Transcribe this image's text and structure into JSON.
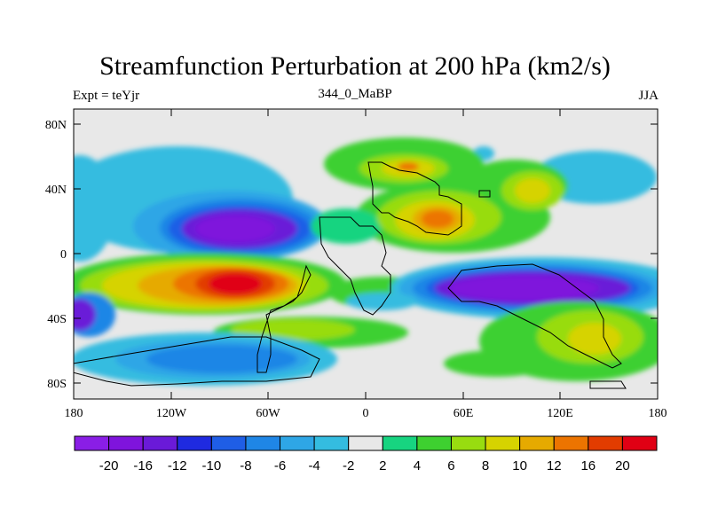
{
  "title": "Streamfunction Perturbation at 200 hPa (km2/s)",
  "left_label": "Expt = teYjr",
  "center_label": "344_0_MaBP",
  "right_label": "JJA",
  "y_ticks": [
    "80N",
    "40N",
    "0",
    "40S",
    "80S"
  ],
  "x_ticks": [
    "180",
    "120W",
    "60W",
    "0",
    "60E",
    "120E",
    "180"
  ],
  "colorbar": {
    "colors": [
      "#8a1ee6",
      "#7f14dc",
      "#6a1ad8",
      "#1f2ae0",
      "#1f5ee6",
      "#1f86e6",
      "#2ea6e6",
      "#34bce0",
      "#e8e8e8",
      "#17d480",
      "#3ed030",
      "#98dc10",
      "#d6d300",
      "#e6aa00",
      "#ec7400",
      "#e23c00",
      "#e00014"
    ],
    "labels": [
      "-20",
      "-16",
      "-12",
      "-10",
      "-8",
      "-6",
      "-4",
      "-2",
      "2",
      "4",
      "6",
      "8",
      "10",
      "12",
      "16",
      "20"
    ]
  }
}
